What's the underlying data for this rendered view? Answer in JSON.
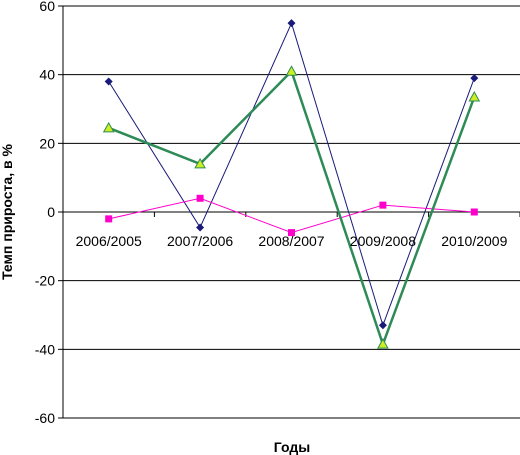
{
  "chart_data": {
    "type": "line",
    "title": "",
    "xlabel": "Годы",
    "ylabel": "Темп прироста, в %",
    "categories": [
      "2006/2005",
      "2007/2006",
      "2008/2007",
      "2009/2008",
      "2010/2009"
    ],
    "ylim": [
      -60,
      60
    ],
    "yticks": [
      60,
      40,
      20,
      0,
      -20,
      -40,
      -60
    ],
    "grid": true,
    "legend": "none",
    "series": [
      {
        "values": [
          38,
          -4.5,
          55,
          -33,
          39
        ],
        "color": "#1a1a7a",
        "marker": "diamond"
      },
      {
        "values": [
          -2,
          4,
          -6,
          2,
          0
        ],
        "color": "#ff00cc",
        "marker": "square"
      },
      {
        "values": [
          24.5,
          14,
          41,
          -38.5,
          33.5
        ],
        "color": "#2e8b57",
        "marker": "triangle",
        "marker_fill": "#ccee22"
      }
    ]
  }
}
